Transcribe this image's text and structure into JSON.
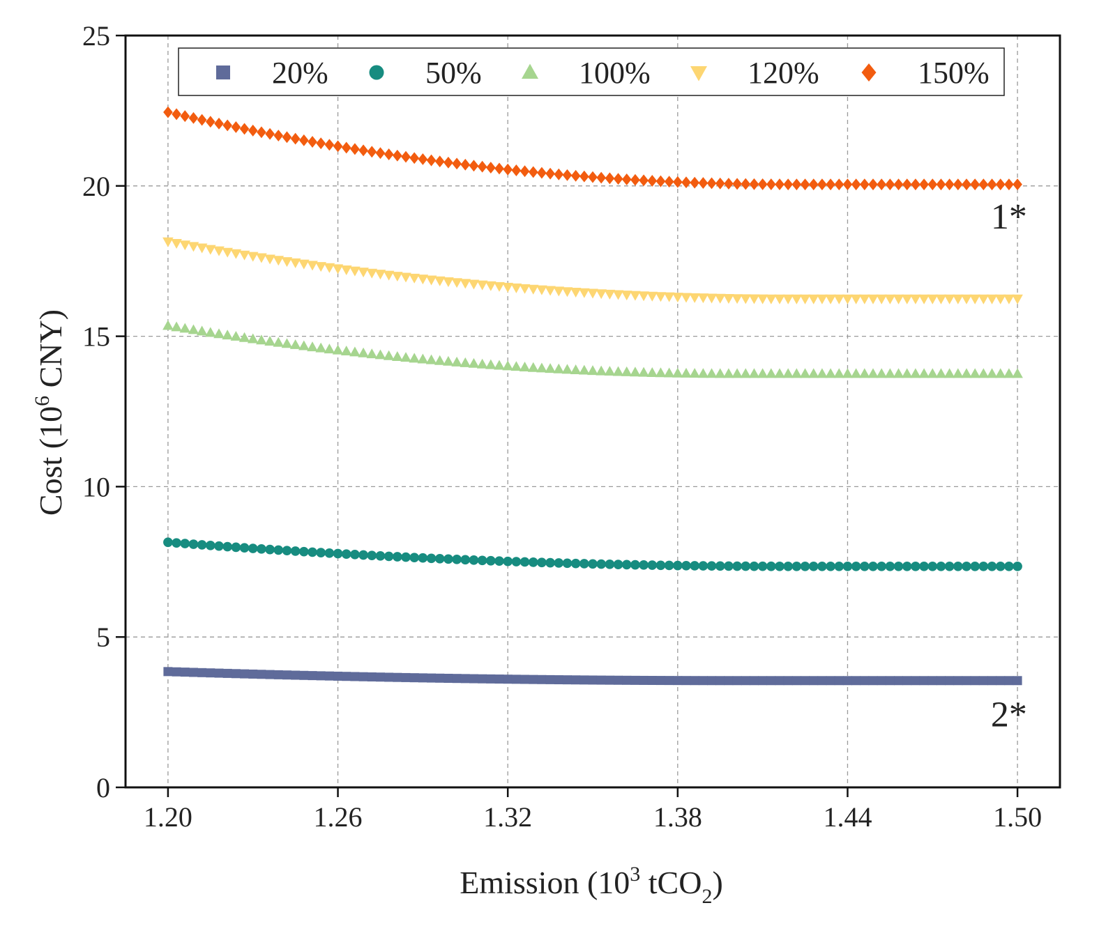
{
  "chart_data": {
    "type": "scatter",
    "xlabel": {
      "main": "Emission (10",
      "sup": "3",
      "mid": " tCO",
      "sub": "2",
      "end": ")"
    },
    "ylabel": {
      "main": "Cost (10",
      "sup": "6",
      "end": " CNY)"
    },
    "xlim": [
      1.185,
      1.515
    ],
    "ylim": [
      0,
      25
    ],
    "xticks": [
      1.2,
      1.26,
      1.32,
      1.38,
      1.44,
      1.5
    ],
    "xtick_labels": [
      "1.20",
      "1.26",
      "1.32",
      "1.38",
      "1.44",
      "1.50"
    ],
    "yticks": [
      0,
      5,
      10,
      15,
      20,
      25
    ],
    "ytick_labels": [
      "0",
      "5",
      "10",
      "15",
      "20",
      "25"
    ],
    "grid": true,
    "legend_position": "top",
    "x_range": [
      1.2,
      1.5
    ],
    "n_points": 101,
    "series": [
      {
        "name": "20%",
        "marker": "square",
        "color": "#5F6B9A",
        "start": 3.85,
        "end": 3.55,
        "x_knee": 1.4
      },
      {
        "name": "50%",
        "marker": "circle",
        "color": "#178C80",
        "start": 8.15,
        "end": 7.35,
        "x_knee": 1.42
      },
      {
        "name": "100%",
        "marker": "triangle",
        "color": "#A6D58F",
        "start": 15.35,
        "end": 13.75,
        "x_knee": 1.4
      },
      {
        "name": "120%",
        "marker": "triangle-down",
        "color": "#FDD672",
        "start": 18.15,
        "end": 16.25,
        "x_knee": 1.42
      },
      {
        "name": "150%",
        "marker": "diamond",
        "color": "#F25C0F",
        "start": 22.45,
        "end": 20.05,
        "x_knee": 1.42
      }
    ],
    "annotations": [
      {
        "text": "1*",
        "x": 1.497,
        "y": 19.0
      },
      {
        "text": "2*",
        "x": 1.497,
        "y": 2.45
      }
    ]
  }
}
